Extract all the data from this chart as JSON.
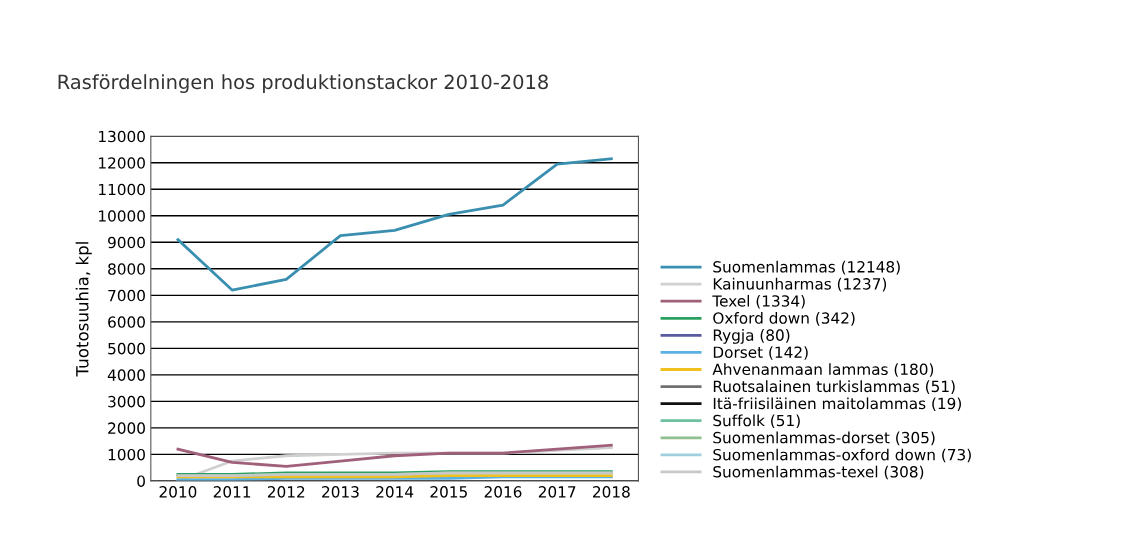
{
  "chart_data": {
    "type": "line",
    "title": "Rasfördelningen hos produktionstackor 2010-2018",
    "ylabel": "Tuotosuuhia, kpl",
    "categories": [
      "2010",
      "2011",
      "2012",
      "2013",
      "2014",
      "2015",
      "2016",
      "2017",
      "2018"
    ],
    "ylim": [
      0,
      13000
    ],
    "yticks": [
      0,
      1000,
      2000,
      3000,
      4000,
      5000,
      6000,
      7000,
      8000,
      9000,
      10000,
      11000,
      12000,
      13000
    ],
    "grid": "y",
    "legend": "right",
    "marker": "none",
    "line_style": "solid",
    "series": [
      {
        "name": "Suomenlammas (12148)",
        "color": "#3a8fb0",
        "values": [
          9100,
          7200,
          7600,
          9250,
          9450,
          10050,
          10400,
          11950,
          12150
        ]
      },
      {
        "name": "Kainuunharmas (1237)",
        "color": "#d0d0d0",
        "values": [
          0,
          750,
          950,
          1000,
          1050,
          1050,
          1050,
          1150,
          1250
        ]
      },
      {
        "name": "Texel (1334)",
        "color": "#a0607a",
        "values": [
          1200,
          700,
          550,
          750,
          950,
          1050,
          1050,
          1200,
          1350
        ]
      },
      {
        "name": "Oxford down (342)",
        "color": "#2aa060",
        "values": [
          250,
          250,
          300,
          300,
          300,
          350,
          350,
          350,
          350
        ]
      },
      {
        "name": "Rygja (80)",
        "color": "#5a5aa0",
        "values": [
          null,
          null,
          null,
          null,
          null,
          null,
          null,
          null,
          null
        ]
      },
      {
        "name": "Dorset (142)",
        "color": "#5ab0e0",
        "values": [
          50,
          50,
          100,
          100,
          100,
          100,
          150,
          150,
          150
        ]
      },
      {
        "name": "Ahvenanmaan lammas (180)",
        "color": "#f0c020",
        "values": [
          150,
          150,
          150,
          150,
          150,
          200,
          200,
          200,
          200
        ]
      },
      {
        "name": "Ruotsalainen turkislammas (51)",
        "color": "#707070",
        "values": [
          null,
          null,
          null,
          null,
          null,
          null,
          null,
          null,
          null
        ]
      },
      {
        "name": "Itä-friisiläinen maitolammas (19)",
        "color": "#101010",
        "values": [
          null,
          null,
          null,
          null,
          null,
          null,
          null,
          null,
          null
        ]
      },
      {
        "name": "Suffolk (51)",
        "color": "#70c0a0",
        "values": [
          null,
          null,
          null,
          null,
          null,
          null,
          null,
          null,
          null
        ]
      },
      {
        "name": "Suomenlammas-dorset (305)",
        "color": "#90c090",
        "values": [
          200,
          200,
          250,
          250,
          250,
          300,
          300,
          300,
          300
        ]
      },
      {
        "name": "Suomenlammas-oxford down (73)",
        "color": "#a0d0e0",
        "values": [
          null,
          null,
          null,
          null,
          null,
          null,
          null,
          null,
          null
        ]
      },
      {
        "name": "Suomenlammas-texel (308)",
        "color": "#c8c8c8",
        "values": [
          200,
          200,
          250,
          250,
          250,
          300,
          300,
          300,
          300
        ]
      }
    ]
  }
}
